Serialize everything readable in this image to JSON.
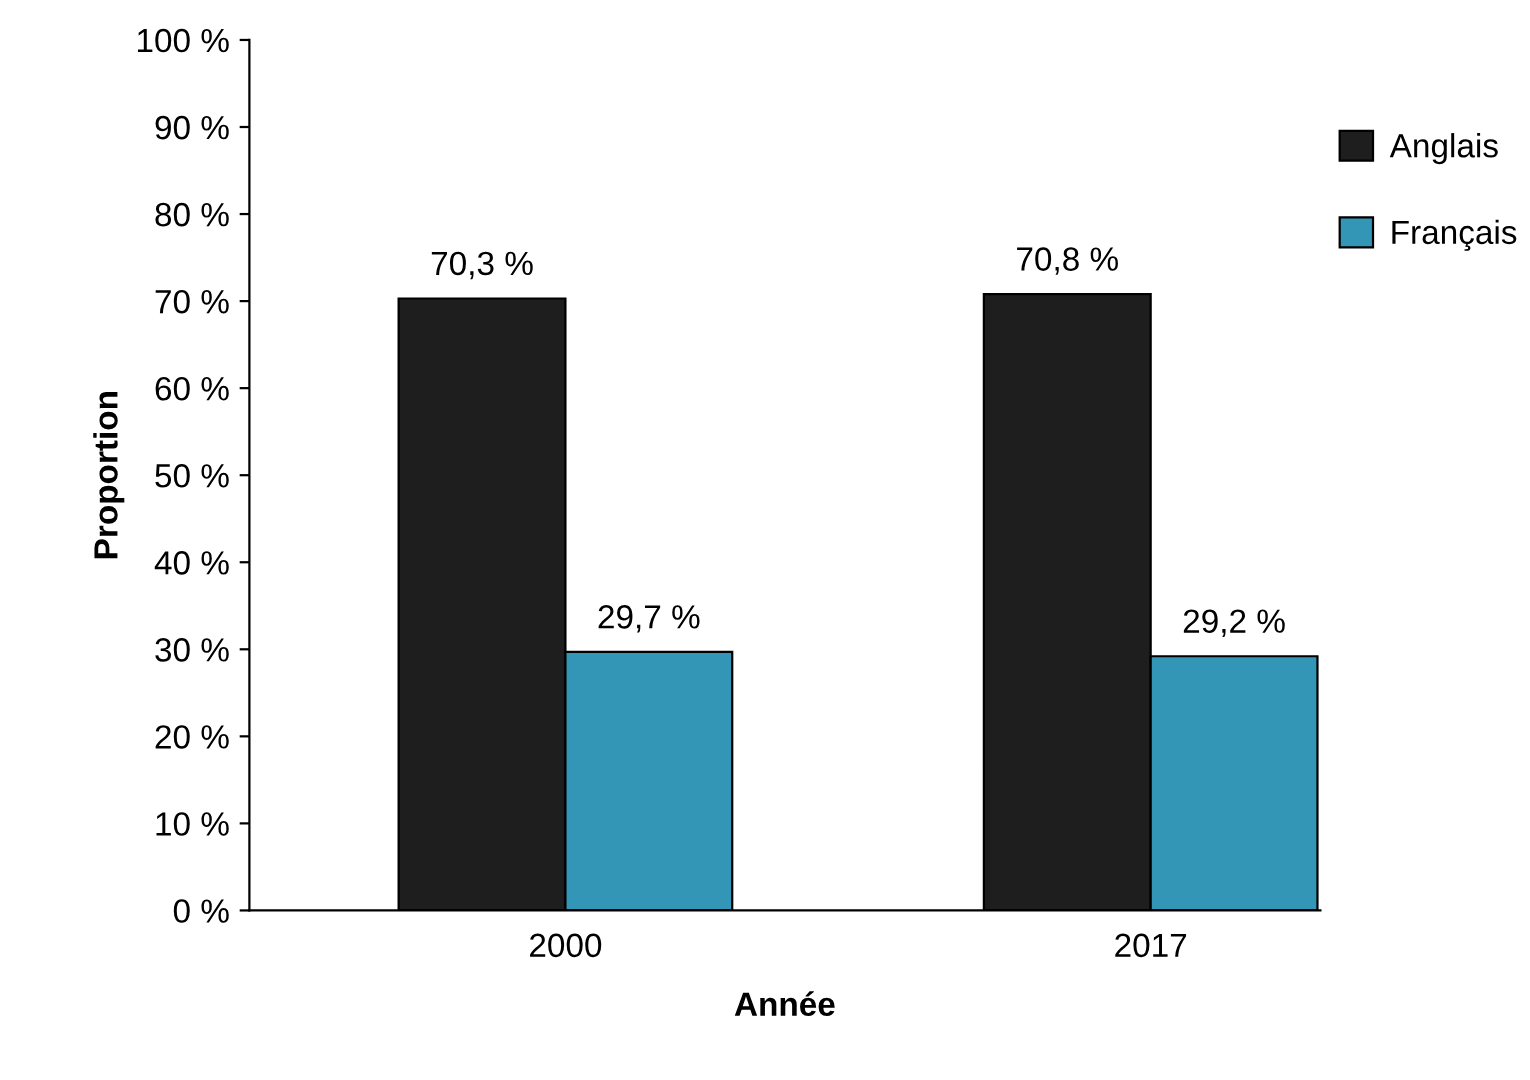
{
  "chart_data": {
    "type": "bar",
    "xlabel": "Année",
    "ylabel": "Proportion",
    "categories": [
      "2000",
      "2017"
    ],
    "series": [
      {
        "name": "Anglais",
        "color": "#1e1e1e",
        "values": [
          70.3,
          70.8
        ],
        "value_labels": [
          "70,3 %",
          "70,8 %"
        ]
      },
      {
        "name": "Français",
        "color": "#3396b6",
        "values": [
          29.7,
          29.2
        ],
        "value_labels": [
          "29,7 %",
          "29,2 %"
        ]
      }
    ],
    "ylim": [
      0,
      100
    ],
    "yticks": [
      {
        "value": 0,
        "label": "0 %"
      },
      {
        "value": 10,
        "label": "10 %"
      },
      {
        "value": 20,
        "label": "20 %"
      },
      {
        "value": 30,
        "label": "30 %"
      },
      {
        "value": 40,
        "label": "40 %"
      },
      {
        "value": 50,
        "label": "50 %"
      },
      {
        "value": 60,
        "label": "60 %"
      },
      {
        "value": 70,
        "label": "70 %"
      },
      {
        "value": 80,
        "label": "80 %"
      },
      {
        "value": 90,
        "label": "90 %"
      },
      {
        "value": 100,
        "label": "100 %"
      }
    ],
    "grid": false,
    "legend": "right"
  }
}
